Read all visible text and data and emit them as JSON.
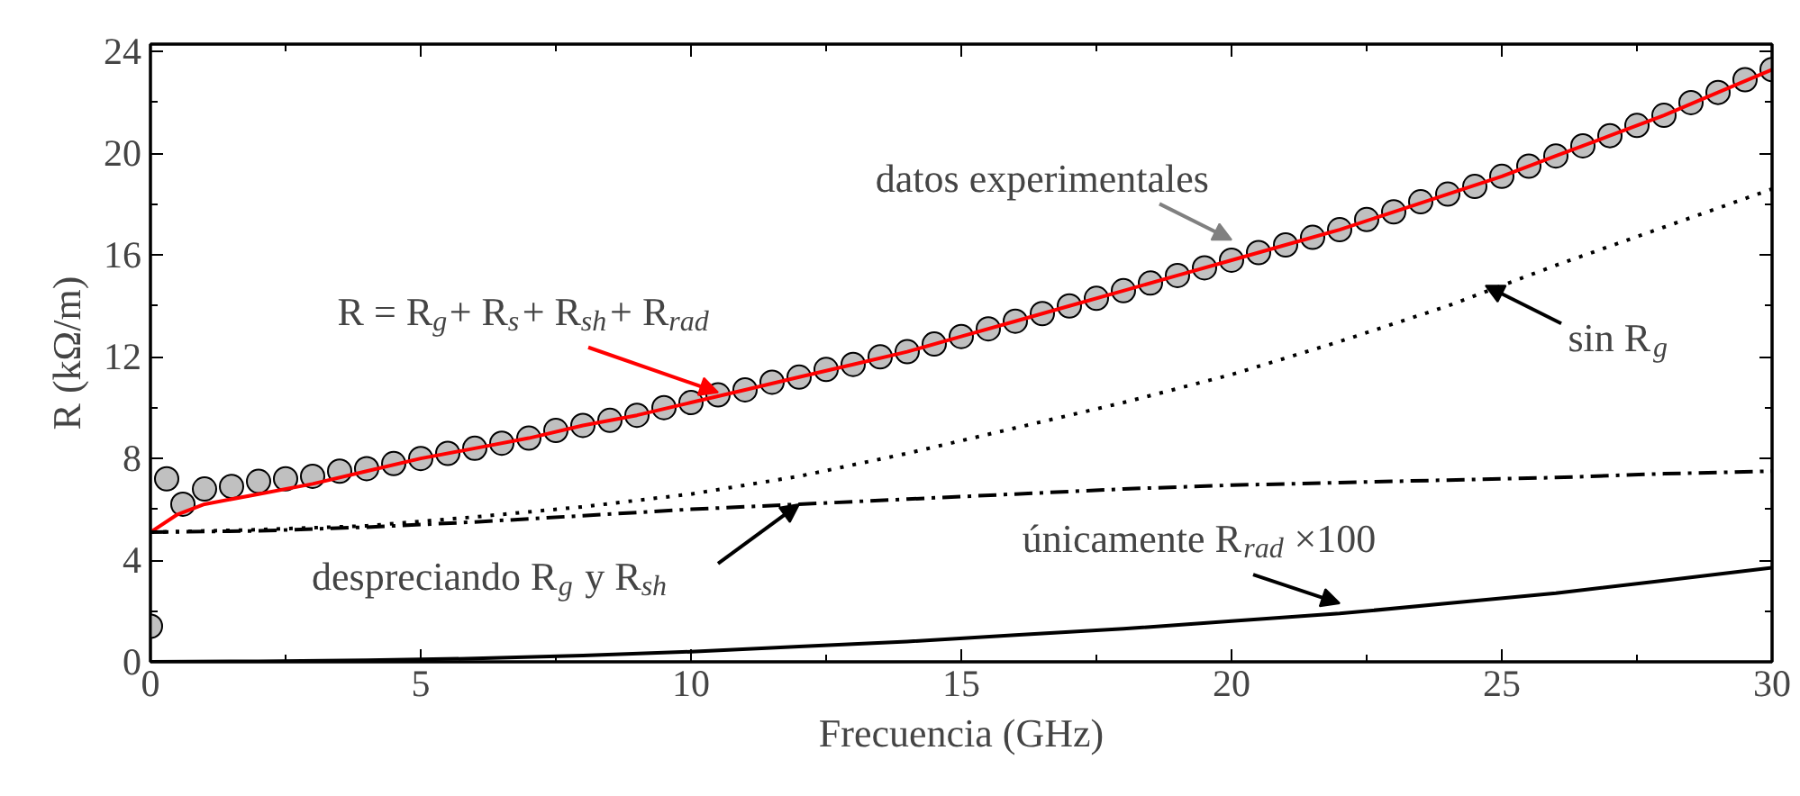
{
  "chart_data": {
    "type": "line",
    "xlabel": "Frecuencia (GHz)",
    "ylabel": "R (kΩ/m)",
    "xlim": [
      0,
      30
    ],
    "ylim": [
      0,
      24.3
    ],
    "xticks": [
      0,
      5,
      10,
      15,
      20,
      25,
      30
    ],
    "yticks": [
      0,
      4,
      8,
      12,
      16,
      20,
      24
    ],
    "grid": false,
    "series": [
      {
        "type": "scatter",
        "marker": "circle",
        "color": "#c0c0c0",
        "x": [
          0,
          0.3,
          0.6,
          1.0,
          1.5,
          2.0,
          2.5,
          3.0,
          3.5,
          4.0,
          4.5,
          5.0,
          5.5,
          6.0,
          6.5,
          7.0,
          7.5,
          8.0,
          8.5,
          9.0,
          9.5,
          10,
          10.5,
          11,
          11.5,
          12,
          12.5,
          13,
          13.5,
          14,
          14.5,
          15,
          15.5,
          16,
          16.5,
          17,
          17.5,
          18,
          18.5,
          19,
          19.5,
          20,
          20.5,
          21,
          21.5,
          22,
          22.5,
          23,
          23.5,
          24,
          24.5,
          25,
          25.5,
          26,
          26.5,
          27,
          27.5,
          28,
          28.5,
          29,
          29.5,
          30
        ],
        "values": [
          1.4,
          7.2,
          6.2,
          6.8,
          6.9,
          7.1,
          7.2,
          7.3,
          7.5,
          7.6,
          7.8,
          8.0,
          8.2,
          8.4,
          8.6,
          8.8,
          9.1,
          9.3,
          9.5,
          9.7,
          10.0,
          10.2,
          10.5,
          10.7,
          11.0,
          11.2,
          11.5,
          11.7,
          12.0,
          12.2,
          12.5,
          12.8,
          13.1,
          13.4,
          13.7,
          14.0,
          14.3,
          14.6,
          14.9,
          15.2,
          15.5,
          15.8,
          16.1,
          16.4,
          16.7,
          17.0,
          17.4,
          17.7,
          18.1,
          18.4,
          18.7,
          19.1,
          19.5,
          19.9,
          20.3,
          20.7,
          21.1,
          21.5,
          22.0,
          22.4,
          22.9,
          23.3
        ]
      },
      {
        "line_style": "solid",
        "color": "#ff0000",
        "x": [
          0,
          0.5,
          1,
          2,
          3,
          4,
          5,
          6,
          7,
          8,
          9,
          10,
          11,
          12,
          13,
          14,
          15,
          16,
          17,
          18,
          19,
          20,
          21,
          22,
          23,
          24,
          25,
          26,
          27,
          28,
          29,
          30
        ],
        "values": [
          5.1,
          5.8,
          6.2,
          6.6,
          7.0,
          7.5,
          8.0,
          8.4,
          8.8,
          9.3,
          9.7,
          10.2,
          10.7,
          11.2,
          11.7,
          12.2,
          12.8,
          13.4,
          14.0,
          14.6,
          15.2,
          15.8,
          16.4,
          17.0,
          17.7,
          18.4,
          19.1,
          19.9,
          20.7,
          21.5,
          22.4,
          23.3
        ]
      },
      {
        "line_style": "dotted",
        "color": "#000000",
        "x": [
          0,
          2,
          4,
          6,
          8,
          10,
          12,
          14,
          16,
          18,
          20,
          22,
          24,
          26,
          28,
          30
        ],
        "values": [
          5.1,
          5.2,
          5.35,
          5.7,
          6.1,
          6.6,
          7.3,
          8.2,
          9.2,
          10.2,
          11.3,
          12.6,
          14.0,
          15.6,
          17.1,
          18.6
        ]
      },
      {
        "line_style": "dashdot",
        "color": "#000000",
        "x": [
          0,
          2,
          4,
          6,
          8,
          10,
          12,
          14,
          16,
          18,
          20,
          22,
          24,
          26,
          28,
          30
        ],
        "values": [
          5.1,
          5.15,
          5.3,
          5.5,
          5.75,
          6.0,
          6.2,
          6.4,
          6.6,
          6.8,
          6.95,
          7.05,
          7.15,
          7.25,
          7.4,
          7.5
        ]
      },
      {
        "line_style": "solid",
        "color": "#000000",
        "x": [
          0,
          2,
          4,
          6,
          8,
          10,
          12,
          14,
          16,
          18,
          20,
          22,
          24,
          26,
          28,
          30
        ],
        "values": [
          0,
          0.02,
          0.06,
          0.13,
          0.25,
          0.4,
          0.6,
          0.8,
          1.05,
          1.3,
          1.6,
          1.9,
          2.3,
          2.7,
          3.2,
          3.7
        ]
      }
    ],
    "annotations": [
      {
        "text": "datos experimentales",
        "x": 20,
        "y": 16.6
      },
      {
        "text": "R = R$_{g}$+ R$_{s}$+ R$_{sh}$+ R$_{rad}$",
        "x": 10.5,
        "y": 10.6
      },
      {
        "text": "sin R$_{g}$",
        "x": 24.7,
        "y": 14.8
      },
      {
        "text": "despreciando R$_{g}$ y R$_{sh}$",
        "x": 12,
        "y": 6.2
      },
      {
        "text": "únicamente R$_{rad}$ ×100",
        "x": 22,
        "y": 2.3
      }
    ]
  }
}
